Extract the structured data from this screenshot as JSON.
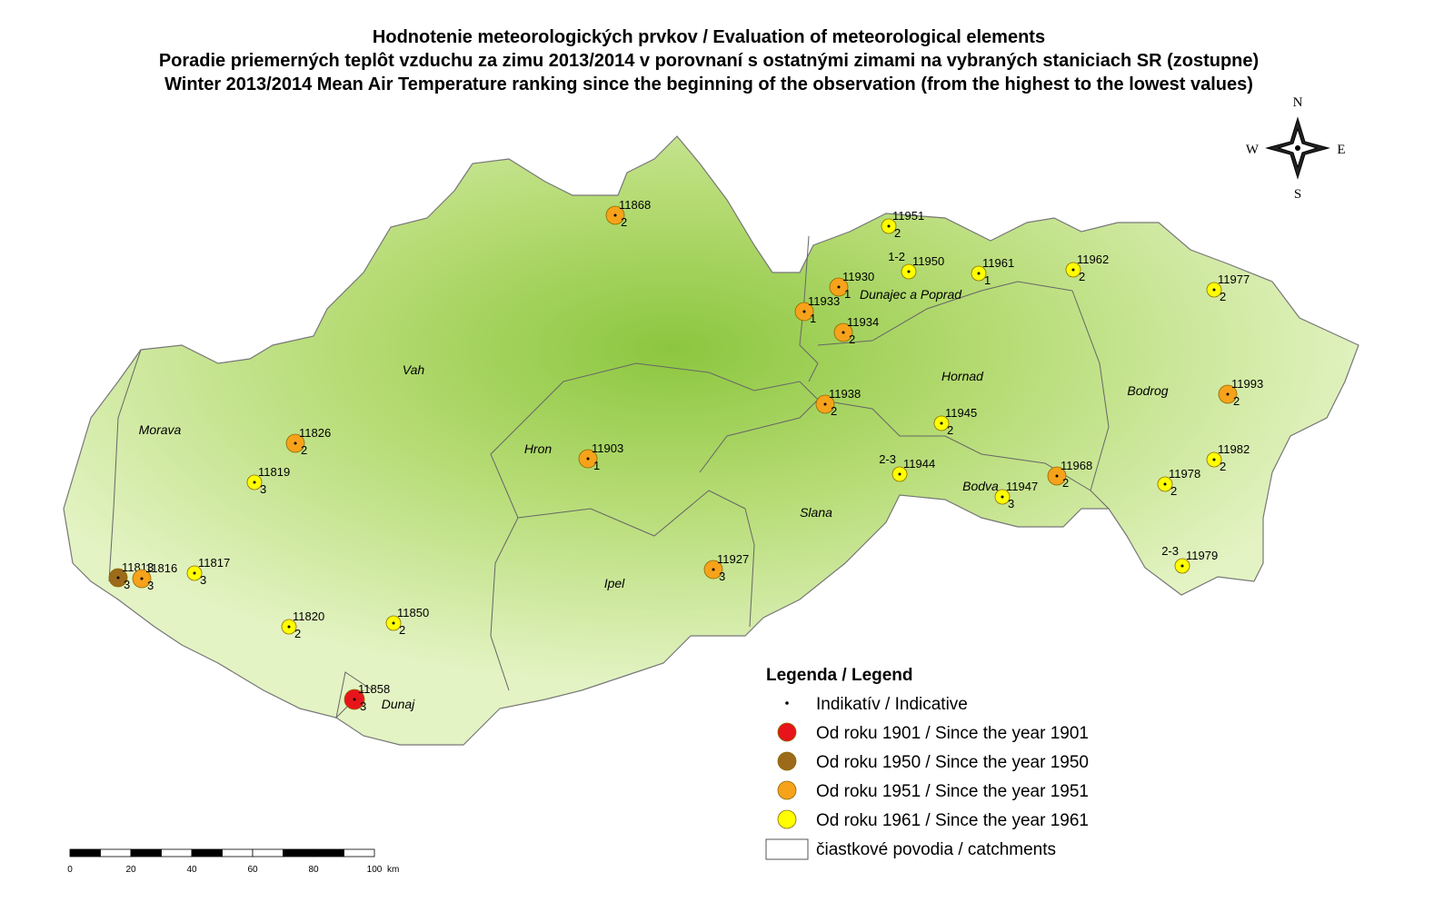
{
  "header": {
    "lines": [
      "Hodnotenie meteorologických prvkov / Evaluation of meteorological elements",
      "Poradie priemerných teplôt vzduchu za zimu 2013/2014 v porovnaní s ostatnými zimami na vybraných staniciach SR (zostupne)",
      "Winter 2013/2014 Mean Air Temperature ranking since the beginning of the observation (from the highest to the lowest values)"
    ]
  },
  "compass": {
    "north": "N",
    "south": "S",
    "east": "E",
    "west": "W"
  },
  "catchments": [
    "Vah",
    "Morava",
    "Hron",
    "Ipel",
    "Dunaj",
    "Slana",
    "Hornad",
    "Bodva",
    "Bodrog",
    "Dunajec a Poprad"
  ],
  "stations": [
    {
      "id": "11868",
      "rank": "2",
      "color": "#f7a21b"
    },
    {
      "id": "11951",
      "rank": "2",
      "color": "#ffff00"
    },
    {
      "id": "11950",
      "rank": "1-2",
      "color": "#ffff00"
    },
    {
      "id": "11961",
      "rank": "1",
      "color": "#ffff00"
    },
    {
      "id": "11962",
      "rank": "2",
      "color": "#ffff00"
    },
    {
      "id": "11930",
      "rank": "1",
      "color": "#f7a21b"
    },
    {
      "id": "11933",
      "rank": "1",
      "color": "#f7a21b"
    },
    {
      "id": "11934",
      "rank": "2",
      "color": "#f7a21b"
    },
    {
      "id": "11977",
      "rank": "2",
      "color": "#ffff00"
    },
    {
      "id": "11938",
      "rank": "2",
      "color": "#f7a21b"
    },
    {
      "id": "11993",
      "rank": "2",
      "color": "#f7a21b"
    },
    {
      "id": "11945",
      "rank": "2",
      "color": "#ffff00"
    },
    {
      "id": "11826",
      "rank": "2",
      "color": "#f7a21b"
    },
    {
      "id": "11903",
      "rank": "1",
      "color": "#f7a21b"
    },
    {
      "id": "11819",
      "rank": "3",
      "color": "#ffff00"
    },
    {
      "id": "11944",
      "rank": "2-3",
      "color": "#ffff00"
    },
    {
      "id": "11968",
      "rank": "2",
      "color": "#f7a21b"
    },
    {
      "id": "11982",
      "rank": "2",
      "color": "#ffff00"
    },
    {
      "id": "11978",
      "rank": "2",
      "color": "#ffff00"
    },
    {
      "id": "11947",
      "rank": "3",
      "color": "#ffff00"
    },
    {
      "id": "11813",
      "rank": "3",
      "color": "#9c6a1a"
    },
    {
      "id": "11816",
      "rank": "3",
      "color": "#f7a21b"
    },
    {
      "id": "11817",
      "rank": "3",
      "color": "#ffff00"
    },
    {
      "id": "11927",
      "rank": "3",
      "color": "#f7a21b"
    },
    {
      "id": "11979",
      "rank": "2-3",
      "color": "#ffff00"
    },
    {
      "id": "11820",
      "rank": "2",
      "color": "#ffff00"
    },
    {
      "id": "11850",
      "rank": "2",
      "color": "#ffff00"
    },
    {
      "id": "11858",
      "rank": "3",
      "color": "#e8141b"
    }
  ],
  "legend": {
    "title": "Legenda / Legend",
    "items": [
      {
        "label": "Indikatív / Indicative",
        "kind": "dot"
      },
      {
        "label": "Od roku 1901 / Since the year 1901",
        "color": "#e8141b"
      },
      {
        "label": "Od roku 1950 / Since the year 1950",
        "color": "#9c6a1a"
      },
      {
        "label": "Od roku 1951 / Since the year 1951",
        "color": "#f7a21b"
      },
      {
        "label": "Od roku 1961 / Since the year 1961",
        "color": "#ffff00"
      },
      {
        "label": "čiastkové povodia / catchments",
        "kind": "box"
      }
    ]
  },
  "scale_bar": {
    "ticks": [
      0,
      20,
      40,
      60,
      80,
      100
    ],
    "unit": "km"
  }
}
